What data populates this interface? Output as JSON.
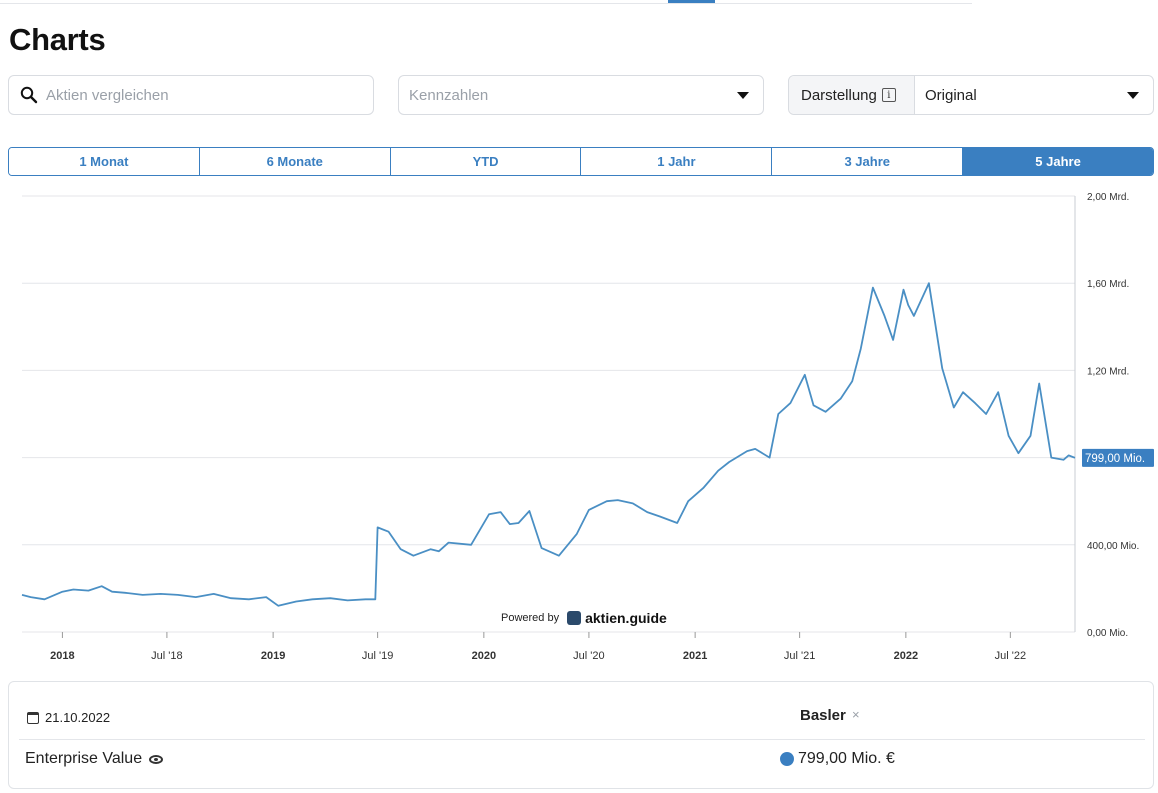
{
  "page": {
    "title": "Charts"
  },
  "controls": {
    "search_placeholder": "Aktien vergleichen",
    "kennzahlen_placeholder": "Kennzahlen",
    "darstellung_label": "Darstellung",
    "darstellung_info": "i",
    "darstellung_value": "Original"
  },
  "ranges": [
    {
      "label": "1 Monat",
      "active": false
    },
    {
      "label": "6 Monate",
      "active": false
    },
    {
      "label": "YTD",
      "active": false
    },
    {
      "label": "1 Jahr",
      "active": false
    },
    {
      "label": "3 Jahre",
      "active": false
    },
    {
      "label": "5 Jahre",
      "active": true
    }
  ],
  "colors": {
    "accent": "#3a7fc1",
    "line": "#4a8fc4",
    "grid": "#e4e6ea"
  },
  "chart_data": {
    "type": "line",
    "x_start": "2017-10-23",
    "x_end": "2022-10-21",
    "y_ticks": [
      0,
      400,
      800,
      1200,
      1600,
      2000
    ],
    "y_tick_labels": [
      "0,00 Mio.",
      "400,00 Mio.",
      "",
      "1,20 Mrd.",
      "1,60 Mrd.",
      "2,00 Mrd."
    ],
    "ylim": [
      0,
      2000
    ],
    "x_tick_labels": [
      {
        "date": "2018-01-01",
        "label": "2018",
        "bold": true
      },
      {
        "date": "2018-07-01",
        "label": "Jul '18",
        "bold": false
      },
      {
        "date": "2019-01-01",
        "label": "2019",
        "bold": true
      },
      {
        "date": "2019-07-01",
        "label": "Jul '19",
        "bold": false
      },
      {
        "date": "2020-01-01",
        "label": "2020",
        "bold": true
      },
      {
        "date": "2020-07-01",
        "label": "Jul '20",
        "bold": false
      },
      {
        "date": "2021-01-01",
        "label": "2021",
        "bold": true
      },
      {
        "date": "2021-07-01",
        "label": "Jul '21",
        "bold": false
      },
      {
        "date": "2022-01-01",
        "label": "2022",
        "bold": true
      },
      {
        "date": "2022-07-01",
        "label": "Jul '22",
        "bold": false
      }
    ],
    "last_value_label": "799,00 Mio.",
    "series": [
      {
        "name": "Basler",
        "x": [
          "2017-10-23",
          "2017-11-07",
          "2017-12-01",
          "2018-01-01",
          "2018-01-20",
          "2018-02-15",
          "2018-03-10",
          "2018-03-28",
          "2018-04-20",
          "2018-05-20",
          "2018-06-20",
          "2018-07-20",
          "2018-08-20",
          "2018-09-20",
          "2018-10-20",
          "2018-11-20",
          "2018-12-20",
          "2019-01-10",
          "2019-02-10",
          "2019-03-10",
          "2019-04-10",
          "2019-05-10",
          "2019-06-10",
          "2019-06-27",
          "2019-07-01",
          "2019-07-20",
          "2019-08-10",
          "2019-09-01",
          "2019-10-01",
          "2019-10-15",
          "2019-11-01",
          "2019-12-10",
          "2020-01-10",
          "2020-01-30",
          "2020-02-15",
          "2020-03-01",
          "2020-03-20",
          "2020-04-10",
          "2020-05-10",
          "2020-06-10",
          "2020-07-01",
          "2020-08-01",
          "2020-08-20",
          "2020-09-15",
          "2020-10-10",
          "2020-11-01",
          "2020-12-01",
          "2020-12-20",
          "2021-01-15",
          "2021-02-10",
          "2021-03-01",
          "2021-04-01",
          "2021-04-15",
          "2021-05-10",
          "2021-05-25",
          "2021-06-15",
          "2021-07-10",
          "2021-07-25",
          "2021-08-15",
          "2021-09-10",
          "2021-09-30",
          "2021-10-15",
          "2021-11-05",
          "2021-11-25",
          "2021-12-10",
          "2021-12-28",
          "2022-01-05",
          "2022-01-15",
          "2022-02-10",
          "2022-03-05",
          "2022-03-25",
          "2022-04-10",
          "2022-05-01",
          "2022-05-20",
          "2022-06-10",
          "2022-06-28",
          "2022-07-15",
          "2022-08-05",
          "2022-08-20",
          "2022-09-10",
          "2022-10-01",
          "2022-10-10",
          "2022-10-21"
        ],
        "values": [
          170,
          160,
          150,
          185,
          195,
          190,
          210,
          185,
          180,
          170,
          175,
          170,
          160,
          175,
          155,
          150,
          160,
          120,
          140,
          150,
          155,
          145,
          150,
          150,
          480,
          460,
          380,
          350,
          380,
          370,
          410,
          400,
          540,
          550,
          495,
          500,
          555,
          385,
          350,
          450,
          560,
          600,
          605,
          590,
          550,
          530,
          500,
          600,
          660,
          740,
          780,
          830,
          840,
          800,
          1000,
          1050,
          1180,
          1040,
          1010,
          1070,
          1150,
          1300,
          1580,
          1450,
          1340,
          1570,
          1500,
          1450,
          1600,
          1210,
          1030,
          1100,
          1050,
          1000,
          1100,
          900,
          820,
          900,
          1140,
          800,
          790,
          810,
          799
        ]
      }
    ]
  },
  "branding": {
    "powered_by": "Powered by",
    "brand": "aktien.guide"
  },
  "info_panel": {
    "date": "21.10.2022",
    "company": "Basler",
    "remove": "×",
    "metric": "Enterprise Value",
    "value": "799,00 Mio. €"
  }
}
